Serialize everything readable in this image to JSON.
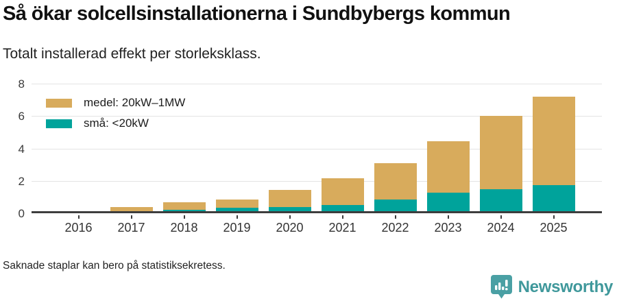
{
  "header": {
    "title": "Så ökar solcellsinstallationerna i Sundbybergs kommun",
    "subtitle": "Totalt installerad effekt per storleksklass."
  },
  "legend": {
    "items": [
      {
        "label": "medel: 20kW–1MW",
        "color": "#d8ab5c"
      },
      {
        "label": "små: <20kW",
        "color": "#00a39b"
      }
    ]
  },
  "footer": {
    "note": "Saknade staplar kan bero på statistiksekretess.",
    "brand_name": "Newsworthy"
  },
  "colors": {
    "medel_gold": "#d8ab5c",
    "sma_teal": "#00a39b",
    "brand_icon_teal": "#4aa0a4",
    "brand_text_teal": "#3f989b",
    "axis_text": "#3a3a3a",
    "gridline": "#e4e4e4",
    "baseline": "#3d3d3d"
  },
  "chart_data": {
    "type": "bar",
    "stacked": true,
    "title": "Så ökar solcellsinstallationerna i Sundbybergs kommun",
    "subtitle": "Totalt installerad effekt per storleksklass.",
    "categories": [
      "2016",
      "2017",
      "2018",
      "2019",
      "2020",
      "2021",
      "2022",
      "2023",
      "2024",
      "2025"
    ],
    "series": [
      {
        "name": "medel: 20kW–1MW",
        "key": "medel",
        "color": "#d8ab5c",
        "values": [
          0,
          0.25,
          0.45,
          0.5,
          1.05,
          1.65,
          2.25,
          3.15,
          4.55,
          5.45
        ]
      },
      {
        "name": "små: <20kW",
        "key": "sma",
        "color": "#00a39b",
        "values": [
          0,
          0,
          0.1,
          0.2,
          0.25,
          0.4,
          0.7,
          1.15,
          1.35,
          1.6
        ]
      }
    ],
    "totals": [
      0,
      0.25,
      0.55,
      0.7,
      1.3,
      2.05,
      2.95,
      4.3,
      5.9,
      7.05
    ],
    "ylim": [
      0,
      8
    ],
    "yticks": [
      0,
      2,
      4,
      6,
      8
    ],
    "grid": true,
    "legend_position": "top-left",
    "stack_order_bottom_to_top": [
      "sma",
      "medel"
    ]
  }
}
